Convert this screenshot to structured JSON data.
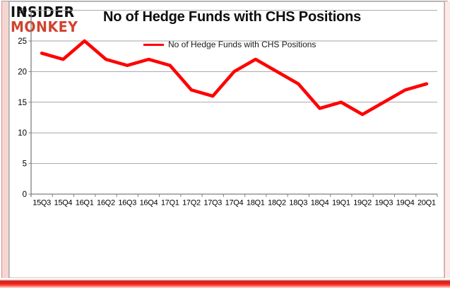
{
  "logo": {
    "line1": "INSIDER",
    "line2": "MONKEY"
  },
  "header": {
    "title": "No of Hedge Funds with CHS Positions"
  },
  "legend": {
    "label": "No of Hedge Funds with CHS Positions"
  },
  "colors": {
    "series": "#ff0000",
    "logo_red": "#d0432e",
    "grid": "#a6a6a6",
    "axis": "#808080",
    "tick_label": "#000000",
    "frame_red": "#ee1a10",
    "frame_pink": "#f6d6d3"
  },
  "chart_data": {
    "type": "line",
    "title": "No of Hedge Funds with CHS Positions",
    "categories": [
      "15Q3",
      "15Q4",
      "16Q1",
      "16Q2",
      "16Q3",
      "16Q4",
      "17Q1",
      "17Q2",
      "17Q3",
      "17Q4",
      "18Q1",
      "18Q2",
      "18Q3",
      "18Q4",
      "19Q1",
      "19Q2",
      "19Q3",
      "19Q4",
      "20Q1"
    ],
    "series": [
      {
        "name": "No of Hedge Funds with CHS Positions",
        "values": [
          23,
          22,
          25,
          22,
          21,
          22,
          21,
          17,
          16,
          20,
          22,
          20,
          18,
          14,
          15,
          13,
          15,
          17,
          18
        ]
      }
    ],
    "xlabel": "",
    "ylabel": "",
    "ylim": [
      0,
      30
    ],
    "yticks": [
      0,
      5,
      10,
      15,
      20,
      25,
      30
    ],
    "grid": true,
    "legend_position": "top-center"
  }
}
